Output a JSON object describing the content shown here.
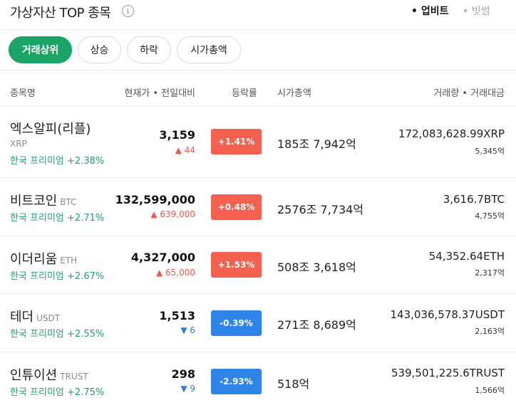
{
  "header": {
    "title": "가상자산 TOP 종목",
    "info_glyph": "i",
    "exchanges": [
      "• 업비트",
      "• 빗썸"
    ]
  },
  "filters": [
    "거래상위",
    "상승",
    "하락",
    "시가총액"
  ],
  "columns": {
    "name": "종목명",
    "price": "현재가 • 전일대비",
    "rate": "등락률",
    "mcap": "시가총액",
    "volume": "거래량 • 거래대금"
  },
  "colors": {
    "green": "#1aa567",
    "up": "#f5604f",
    "down": "#2f84ea"
  },
  "rows": [
    {
      "name": "엑스알피(리플)",
      "ticker": "XRP",
      "premium": "한국 프리미엄 +2.38%",
      "price": "3,159",
      "change": "▲ 44",
      "dir": "up",
      "rate": "+1.41%",
      "mcap": "185조 7,942억",
      "volume": "172,083,628.99XRP",
      "amount": "5,345억"
    },
    {
      "name": "비트코인",
      "ticker": "BTC",
      "premium": "한국 프리미엄 +2.71%",
      "price": "132,599,000",
      "change": "▲ 639,000",
      "dir": "up",
      "rate": "+0.48%",
      "mcap": "2576조 7,734억",
      "volume": "3,616.7BTC",
      "amount": "4,755억"
    },
    {
      "name": "이더리움",
      "ticker": "ETH",
      "premium": "한국 프리미엄 +2.67%",
      "price": "4,327,000",
      "change": "▲ 65,000",
      "dir": "up",
      "rate": "+1.53%",
      "mcap": "508조 3,618억",
      "volume": "54,352.64ETH",
      "amount": "2,317억"
    },
    {
      "name": "테더",
      "ticker": "USDT",
      "premium": "한국 프리미엄 +2.55%",
      "price": "1,513",
      "change": "▼ 6",
      "dir": "down",
      "rate": "-0.39%",
      "mcap": "271조 8,689억",
      "volume": "143,036,578.37USDT",
      "amount": "2,163억"
    },
    {
      "name": "인튜이션",
      "ticker": "TRUST",
      "premium": "한국 프리미엄 +2.75%",
      "price": "298",
      "change": "▼ 9",
      "dir": "down",
      "rate": "-2.93%",
      "mcap": "518억",
      "volume": "539,501,225.6TRUST",
      "amount": "1,566억"
    }
  ]
}
